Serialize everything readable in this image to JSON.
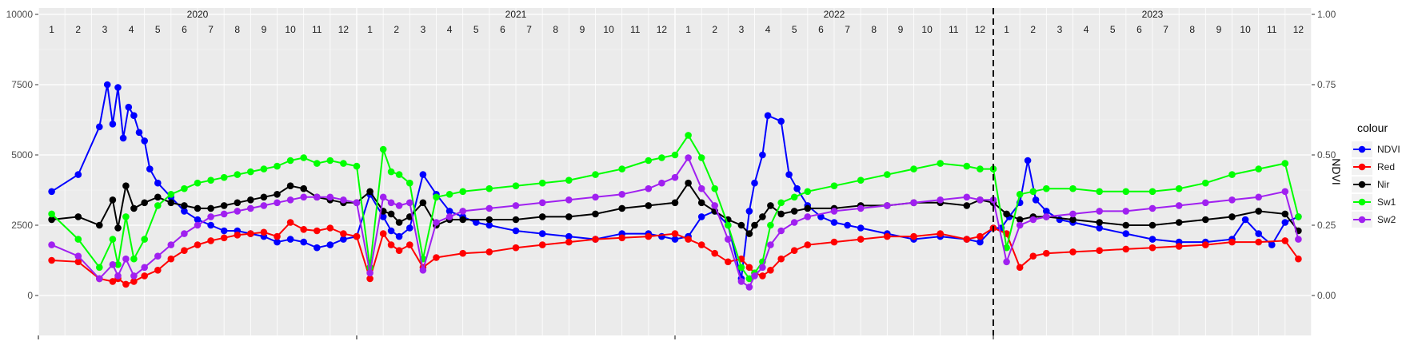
{
  "chart_data": {
    "type": "line",
    "title": "",
    "xlabel": "",
    "ylabel_left": "",
    "ylabel_right": "NDVI",
    "ylim_left": [
      0,
      10000
    ],
    "ylim_right": [
      0,
      1
    ],
    "y_ticks_left": [
      "0",
      "2500",
      "5000",
      "7500",
      "10000"
    ],
    "y_ticks_right": [
      "0.00",
      "0.25",
      "0.50",
      "0.75",
      "1.00"
    ],
    "facet_years": [
      "2020",
      "2021",
      "2022",
      "2023"
    ],
    "month_labels": [
      "1",
      "2",
      "3",
      "4",
      "5",
      "6",
      "7",
      "8",
      "9",
      "10",
      "11",
      "12"
    ],
    "vline_position": 36,
    "grid": true,
    "legend": {
      "title": "colour",
      "placement": "right"
    },
    "series": [
      {
        "name": "NDVI",
        "color": "#0000ff",
        "axis": "right",
        "x": [
          0.5,
          1.5,
          2.3,
          2.6,
          2.8,
          3.0,
          3.2,
          3.4,
          3.6,
          3.8,
          4.0,
          4.2,
          4.5,
          5.0,
          5.5,
          6.0,
          6.5,
          7.0,
          7.5,
          8.0,
          8.5,
          9.0,
          9.5,
          10.0,
          10.5,
          11.0,
          11.5,
          12.0,
          12.5,
          13.0,
          13.3,
          13.6,
          14.0,
          14.5,
          15.0,
          15.5,
          16.0,
          16.5,
          17.0,
          18.0,
          19.0,
          20.0,
          21.0,
          22.0,
          23.0,
          23.5,
          24.0,
          24.5,
          25.0,
          25.5,
          26.0,
          26.5,
          26.8,
          27.0,
          27.3,
          27.5,
          28.0,
          28.3,
          28.6,
          29.0,
          29.5,
          30.0,
          30.5,
          31.0,
          32.0,
          33.0,
          34.0,
          35.0,
          35.5,
          36.0,
          36.3,
          36.6,
          37.0,
          37.3,
          37.6,
          38.0,
          38.5,
          39.0,
          40.0,
          41.0,
          42.0,
          43.0,
          44.0,
          45.0,
          45.5,
          46.0,
          46.5,
          47.0,
          47.5
        ],
        "y": [
          0.37,
          0.43,
          0.6,
          0.75,
          0.61,
          0.74,
          0.56,
          0.67,
          0.64,
          0.58,
          0.55,
          0.45,
          0.4,
          0.35,
          0.3,
          0.27,
          0.25,
          0.23,
          0.23,
          0.22,
          0.21,
          0.19,
          0.2,
          0.19,
          0.17,
          0.18,
          0.2,
          0.21,
          0.36,
          0.28,
          0.23,
          0.21,
          0.24,
          0.43,
          0.36,
          0.3,
          0.28,
          0.26,
          0.25,
          0.23,
          0.22,
          0.21,
          0.2,
          0.22,
          0.22,
          0.21,
          0.2,
          0.21,
          0.28,
          0.3,
          0.25,
          0.06,
          0.3,
          0.4,
          0.5,
          0.64,
          0.62,
          0.43,
          0.38,
          0.32,
          0.28,
          0.26,
          0.25,
          0.24,
          0.22,
          0.2,
          0.21,
          0.2,
          0.19,
          0.24,
          0.24,
          0.28,
          0.33,
          0.48,
          0.34,
          0.3,
          0.27,
          0.26,
          0.24,
          0.22,
          0.2,
          0.19,
          0.19,
          0.2,
          0.27,
          0.22,
          0.18,
          0.26,
          0.28
        ]
      },
      {
        "name": "Red",
        "color": "#ff0000",
        "axis": "left",
        "x": [
          0.5,
          1.5,
          2.3,
          2.8,
          3.0,
          3.3,
          3.6,
          4.0,
          4.5,
          5.0,
          5.5,
          6.0,
          6.5,
          7.0,
          7.5,
          8.0,
          8.5,
          9.0,
          9.5,
          10.0,
          10.5,
          11.0,
          11.5,
          12.0,
          12.5,
          13.0,
          13.3,
          13.6,
          14.0,
          14.5,
          15.0,
          16.0,
          17.0,
          18.0,
          19.0,
          20.0,
          21.0,
          22.0,
          23.0,
          24.0,
          24.5,
          25.0,
          25.5,
          26.0,
          26.5,
          26.8,
          27.0,
          27.3,
          27.6,
          28.0,
          28.5,
          29.0,
          30.0,
          31.0,
          32.0,
          33.0,
          34.0,
          35.0,
          35.5,
          36.0,
          36.5,
          37.0,
          37.5,
          38.0,
          39.0,
          40.0,
          41.0,
          42.0,
          43.0,
          44.0,
          45.0,
          46.0,
          47.0,
          47.5
        ],
        "y": [
          1250,
          1200,
          600,
          500,
          600,
          400,
          500,
          700,
          900,
          1300,
          1600,
          1800,
          1950,
          2050,
          2150,
          2200,
          2250,
          2100,
          2600,
          2350,
          2300,
          2400,
          2200,
          2100,
          600,
          2200,
          1800,
          1600,
          1800,
          1000,
          1350,
          1500,
          1550,
          1700,
          1800,
          1900,
          2000,
          2050,
          2100,
          2200,
          2000,
          1800,
          1500,
          1200,
          1300,
          1000,
          800,
          700,
          900,
          1300,
          1600,
          1800,
          1900,
          2000,
          2100,
          2100,
          2200,
          2000,
          2100,
          2400,
          2200,
          1000,
          1400,
          1500,
          1550,
          1600,
          1650,
          1700,
          1750,
          1800,
          1900,
          1900,
          1950,
          1300
        ]
      },
      {
        "name": "Nir",
        "color": "#000000",
        "axis": "left",
        "x": [
          0.5,
          1.5,
          2.3,
          2.8,
          3.0,
          3.3,
          3.6,
          4.0,
          4.5,
          5.0,
          5.5,
          6.0,
          6.5,
          7.0,
          7.5,
          8.0,
          8.5,
          9.0,
          9.5,
          10.0,
          10.5,
          11.0,
          11.5,
          12.0,
          12.5,
          13.0,
          13.3,
          13.6,
          14.0,
          14.5,
          15.0,
          15.5,
          16.0,
          17.0,
          18.0,
          19.0,
          20.0,
          21.0,
          22.0,
          23.0,
          24.0,
          24.5,
          25.0,
          25.5,
          26.0,
          26.5,
          26.8,
          27.0,
          27.3,
          27.6,
          28.0,
          28.5,
          29.0,
          30.0,
          31.0,
          32.0,
          33.0,
          34.0,
          35.0,
          35.5,
          36.0,
          36.5,
          37.0,
          37.5,
          38.0,
          39.0,
          40.0,
          41.0,
          42.0,
          43.0,
          44.0,
          45.0,
          46.0,
          47.0,
          47.5
        ],
        "y": [
          2700,
          2800,
          2500,
          3400,
          2400,
          3900,
          3100,
          3300,
          3500,
          3300,
          3200,
          3100,
          3100,
          3200,
          3300,
          3400,
          3500,
          3600,
          3900,
          3800,
          3500,
          3400,
          3300,
          3300,
          3700,
          3000,
          2900,
          2600,
          2800,
          3300,
          2500,
          2700,
          2700,
          2700,
          2700,
          2800,
          2800,
          2900,
          3100,
          3200,
          3300,
          4000,
          3300,
          3000,
          2700,
          2500,
          2200,
          2500,
          2800,
          3200,
          2900,
          3000,
          3100,
          3100,
          3200,
          3200,
          3300,
          3300,
          3200,
          3400,
          3300,
          2900,
          2700,
          2800,
          2800,
          2700,
          2600,
          2500,
          2500,
          2600,
          2700,
          2800,
          3000,
          2900,
          2300
        ]
      },
      {
        "name": "Sw1",
        "color": "#00ff00",
        "axis": "left",
        "x": [
          0.5,
          1.5,
          2.3,
          2.8,
          3.0,
          3.3,
          3.6,
          4.0,
          4.5,
          5.0,
          5.5,
          6.0,
          6.5,
          7.0,
          7.5,
          8.0,
          8.5,
          9.0,
          9.5,
          10.0,
          10.5,
          11.0,
          11.5,
          12.0,
          12.5,
          13.0,
          13.3,
          13.6,
          14.0,
          14.5,
          15.0,
          15.5,
          16.0,
          17.0,
          18.0,
          19.0,
          20.0,
          21.0,
          22.0,
          23.0,
          23.5,
          24.0,
          24.5,
          25.0,
          25.5,
          26.0,
          26.5,
          26.8,
          27.0,
          27.3,
          27.6,
          28.0,
          28.5,
          29.0,
          30.0,
          31.0,
          32.0,
          33.0,
          34.0,
          35.0,
          35.5,
          36.0,
          36.5,
          37.0,
          37.5,
          38.0,
          39.0,
          40.0,
          41.0,
          42.0,
          43.0,
          44.0,
          45.0,
          46.0,
          47.0,
          47.5
        ],
        "y": [
          2900,
          2000,
          1000,
          2000,
          1100,
          2800,
          1300,
          2000,
          3200,
          3600,
          3800,
          4000,
          4100,
          4200,
          4300,
          4400,
          4500,
          4600,
          4800,
          4900,
          4700,
          4800,
          4700,
          4600,
          1000,
          5200,
          4400,
          4300,
          4000,
          1300,
          3500,
          3600,
          3700,
          3800,
          3900,
          4000,
          4100,
          4300,
          4500,
          4800,
          4900,
          5000,
          5700,
          4900,
          3800,
          2500,
          1000,
          600,
          800,
          1200,
          2500,
          3300,
          3500,
          3700,
          3900,
          4100,
          4300,
          4500,
          4700,
          4600,
          4500,
          4500,
          1700,
          3600,
          3700,
          3800,
          3800,
          3700,
          3700,
          3700,
          3800,
          4000,
          4300,
          4500,
          4700,
          2800
        ]
      },
      {
        "name": "Sw2",
        "color": "#a020f0",
        "axis": "left",
        "x": [
          0.5,
          1.5,
          2.3,
          2.8,
          3.0,
          3.3,
          3.6,
          4.0,
          4.5,
          5.0,
          5.5,
          6.0,
          6.5,
          7.0,
          7.5,
          8.0,
          8.5,
          9.0,
          9.5,
          10.0,
          10.5,
          11.0,
          11.5,
          12.0,
          12.5,
          13.0,
          13.3,
          13.6,
          14.0,
          14.5,
          15.0,
          15.5,
          16.0,
          17.0,
          18.0,
          19.0,
          20.0,
          21.0,
          22.0,
          23.0,
          23.5,
          24.0,
          24.5,
          25.0,
          25.5,
          26.0,
          26.5,
          26.8,
          27.0,
          27.3,
          27.6,
          28.0,
          28.5,
          29.0,
          30.0,
          31.0,
          32.0,
          33.0,
          34.0,
          35.0,
          35.5,
          36.0,
          36.5,
          37.0,
          37.5,
          38.0,
          39.0,
          40.0,
          41.0,
          42.0,
          43.0,
          44.0,
          45.0,
          46.0,
          47.0,
          47.5
        ],
        "y": [
          1800,
          1400,
          600,
          1100,
          700,
          1300,
          700,
          1000,
          1400,
          1800,
          2200,
          2500,
          2800,
          2900,
          3000,
          3100,
          3200,
          3300,
          3400,
          3500,
          3500,
          3500,
          3400,
          3300,
          800,
          3500,
          3300,
          3200,
          3300,
          900,
          2600,
          2800,
          3000,
          3100,
          3200,
          3300,
          3400,
          3500,
          3600,
          3800,
          4000,
          4200,
          4900,
          3800,
          3200,
          2000,
          500,
          300,
          700,
          1000,
          1800,
          2300,
          2600,
          2800,
          3000,
          3100,
          3200,
          3300,
          3400,
          3500,
          3400,
          3400,
          1200,
          2500,
          2700,
          2800,
          2900,
          3000,
          3000,
          3100,
          3200,
          3300,
          3400,
          3500,
          3700,
          2000
        ]
      }
    ]
  }
}
